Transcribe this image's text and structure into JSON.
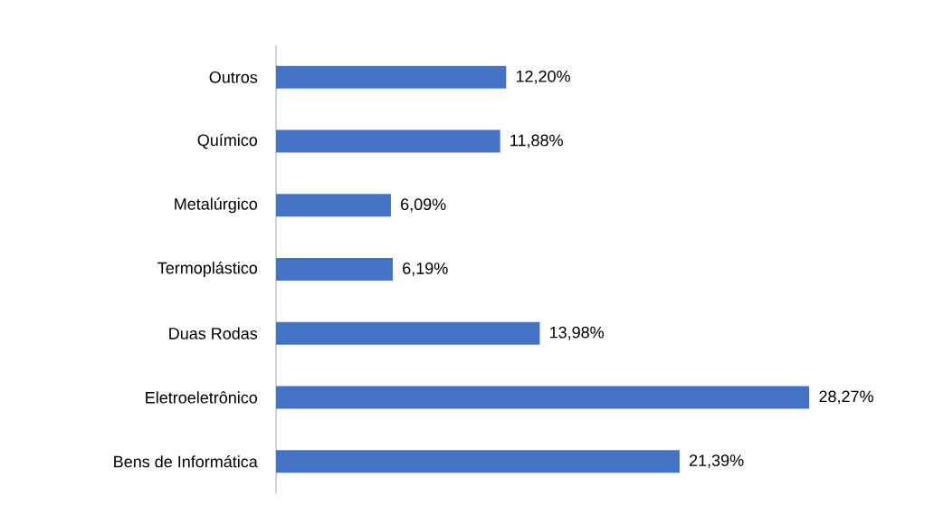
{
  "chart_data": {
    "type": "bar",
    "orientation": "horizontal",
    "categories": [
      "Outros",
      "Químico",
      "Metalúrgico",
      "Termoplástico",
      "Duas Rodas",
      "Eletroeletrônico",
      "Bens de Informática"
    ],
    "values": [
      12.2,
      11.88,
      6.09,
      6.19,
      13.98,
      28.27,
      21.39
    ],
    "value_labels": [
      "12,20%",
      "11,88%",
      "6,09%",
      "6,19%",
      "13,98%",
      "28,27%",
      "21,39%"
    ],
    "color": "#4472c4"
  }
}
